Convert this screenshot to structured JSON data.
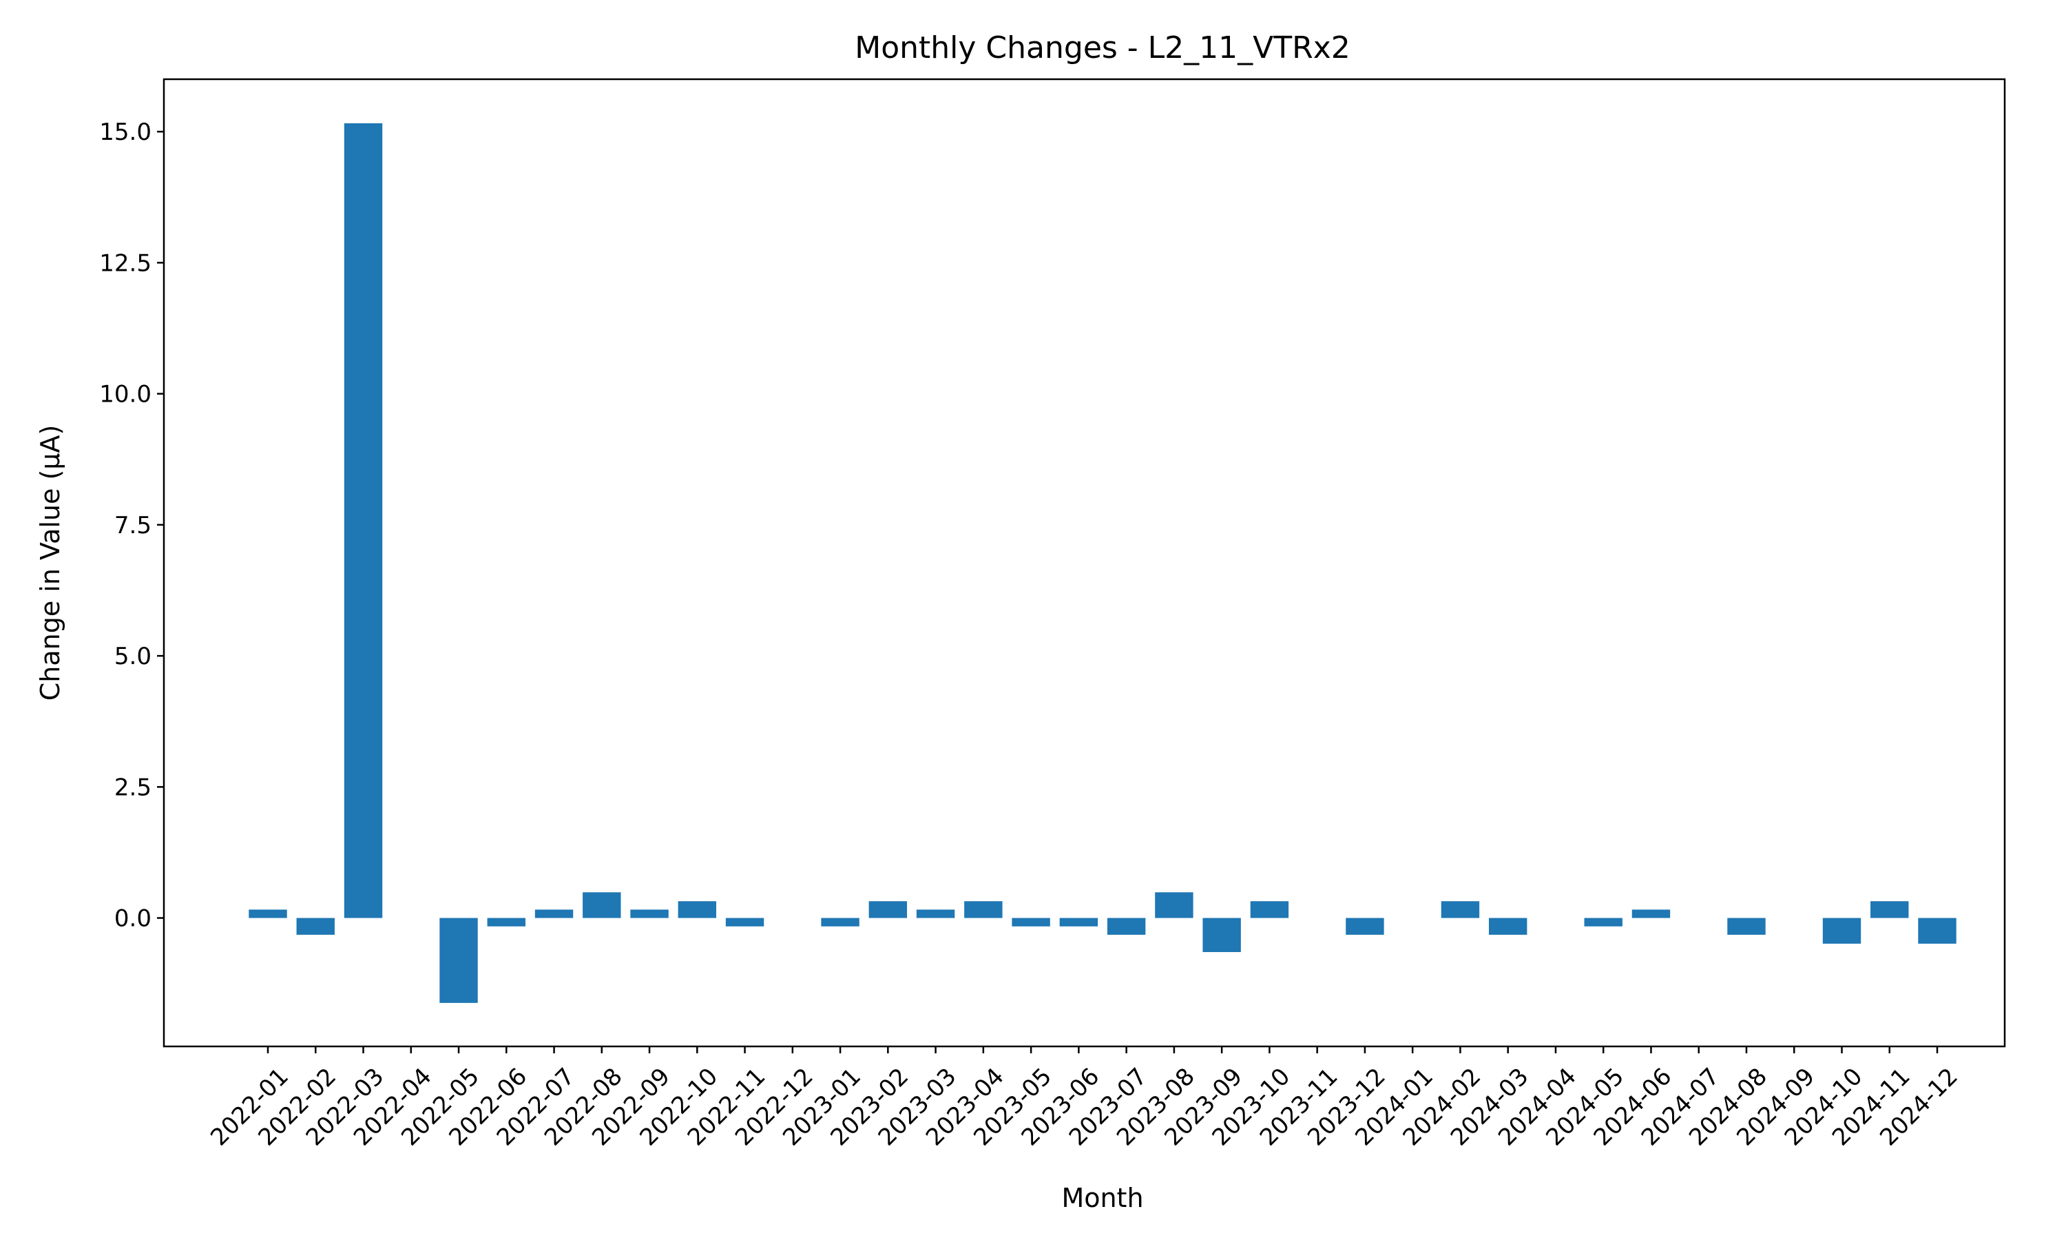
{
  "chart_data": {
    "type": "bar",
    "title": "Monthly Changes - L2_11_VTRx2",
    "xlabel": "Month",
    "ylabel": "Change in Value (μA)",
    "ylim": [
      -2.45,
      16.0
    ],
    "yticks": [
      0.0,
      2.5,
      5.0,
      7.5,
      10.0,
      12.5,
      15.0
    ],
    "ytick_labels": [
      "0.0",
      "2.5",
      "5.0",
      "7.5",
      "10.0",
      "12.5",
      "15.0"
    ],
    "grid": false,
    "color": "#1f77b4",
    "categories": [
      "2022-01",
      "2022-02",
      "2022-03",
      "2022-04",
      "2022-05",
      "2022-06",
      "2022-07",
      "2022-08",
      "2022-09",
      "2022-10",
      "2022-11",
      "2022-12",
      "2023-01",
      "2023-02",
      "2023-03",
      "2023-04",
      "2023-05",
      "2023-06",
      "2023-07",
      "2023-08",
      "2023-09",
      "2023-10",
      "2023-11",
      "2023-12",
      "2024-01",
      "2024-02",
      "2024-03",
      "2024-04",
      "2024-05",
      "2024-06",
      "2024-07",
      "2024-08",
      "2024-09",
      "2024-10",
      "2024-11",
      "2024-12"
    ],
    "values": [
      0.16,
      -0.32,
      15.16,
      0.0,
      -1.62,
      -0.16,
      0.16,
      0.49,
      0.16,
      0.32,
      -0.16,
      0.0,
      -0.16,
      0.32,
      0.16,
      0.32,
      -0.16,
      -0.16,
      -0.32,
      0.49,
      -0.65,
      0.32,
      0.0,
      -0.32,
      0.0,
      0.32,
      -0.32,
      0.0,
      -0.16,
      0.16,
      0.0,
      -0.32,
      0.0,
      -0.49,
      0.32,
      -0.49
    ]
  }
}
